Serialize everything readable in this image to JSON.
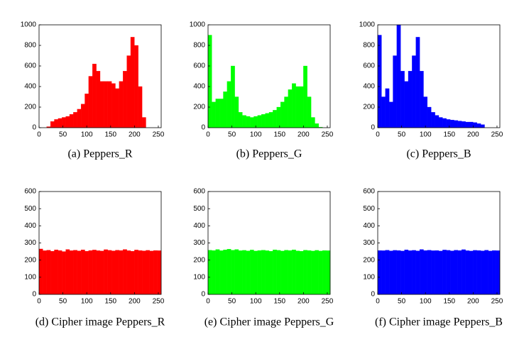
{
  "chart_data": [
    {
      "type": "histogram",
      "title": "(a) Peppers_R",
      "color": "#ff0000",
      "bins": [
        0,
        8,
        16,
        24,
        32,
        40,
        48,
        56,
        64,
        72,
        80,
        88,
        96,
        104,
        112,
        120,
        128,
        136,
        144,
        152,
        160,
        168,
        176,
        184,
        192,
        200,
        208,
        216,
        224,
        232,
        240,
        248,
        256
      ],
      "values": [
        0,
        0,
        10,
        60,
        80,
        90,
        100,
        110,
        130,
        150,
        180,
        230,
        330,
        500,
        620,
        550,
        450,
        450,
        450,
        430,
        380,
        450,
        550,
        700,
        880,
        800,
        400,
        100,
        0,
        0,
        0,
        0
      ],
      "xlim": [
        0,
        256
      ],
      "xticks": [
        0,
        50,
        100,
        150,
        200,
        250
      ],
      "ylim": [
        0,
        1000
      ],
      "yticks": [
        0,
        200,
        400,
        600,
        800,
        1000
      ]
    },
    {
      "type": "histogram",
      "title": "(b) Peppers_G",
      "color": "#00ff00",
      "bins": [
        0,
        8,
        16,
        24,
        32,
        40,
        48,
        56,
        64,
        72,
        80,
        88,
        96,
        104,
        112,
        120,
        128,
        136,
        144,
        152,
        160,
        168,
        176,
        184,
        192,
        200,
        208,
        216,
        224,
        232,
        240,
        248,
        256
      ],
      "values": [
        900,
        250,
        280,
        280,
        350,
        450,
        600,
        300,
        150,
        120,
        110,
        100,
        110,
        120,
        130,
        140,
        150,
        170,
        200,
        250,
        300,
        370,
        430,
        400,
        400,
        600,
        300,
        100,
        40,
        5,
        0,
        0
      ],
      "xlim": [
        0,
        256
      ],
      "xticks": [
        0,
        50,
        100,
        150,
        200,
        250
      ],
      "ylim": [
        0,
        1000
      ],
      "yticks": [
        0,
        200,
        400,
        600,
        800,
        1000
      ]
    },
    {
      "type": "histogram",
      "title": "(c) Peppers_B",
      "color": "#0000ff",
      "bins": [
        0,
        8,
        16,
        24,
        32,
        40,
        48,
        56,
        64,
        72,
        80,
        88,
        96,
        104,
        112,
        120,
        128,
        136,
        144,
        152,
        160,
        168,
        176,
        184,
        192,
        200,
        208,
        216,
        224,
        232,
        240,
        248,
        256
      ],
      "values": [
        900,
        300,
        380,
        250,
        700,
        1000,
        550,
        450,
        550,
        700,
        880,
        550,
        300,
        200,
        150,
        120,
        100,
        90,
        80,
        75,
        70,
        65,
        60,
        55,
        55,
        50,
        40,
        30,
        0,
        0,
        0,
        0
      ],
      "xlim": [
        0,
        256
      ],
      "xticks": [
        0,
        50,
        100,
        150,
        200,
        250
      ],
      "ylim": [
        0,
        1000
      ],
      "yticks": [
        0,
        200,
        400,
        600,
        800,
        1000
      ]
    },
    {
      "type": "histogram",
      "title": "(d) Cipher image Peppers_R",
      "color": "#ff0000",
      "bins": [
        0,
        8,
        16,
        24,
        32,
        40,
        48,
        56,
        64,
        72,
        80,
        88,
        96,
        104,
        112,
        120,
        128,
        136,
        144,
        152,
        160,
        168,
        176,
        184,
        192,
        200,
        208,
        216,
        224,
        232,
        240,
        248,
        256
      ],
      "values": [
        265,
        255,
        258,
        252,
        260,
        256,
        250,
        262,
        255,
        258,
        254,
        260,
        252,
        256,
        259,
        255,
        253,
        261,
        257,
        254,
        258,
        256,
        262,
        255,
        252,
        259,
        256,
        254,
        257,
        253,
        256,
        255
      ],
      "xlim": [
        0,
        256
      ],
      "xticks": [
        0,
        50,
        100,
        150,
        200,
        250
      ],
      "ylim": [
        0,
        600
      ],
      "yticks": [
        0,
        100,
        200,
        300,
        400,
        500,
        600
      ]
    },
    {
      "type": "histogram",
      "title": "(e) Cipher image Peppers_G",
      "color": "#00ff00",
      "bins": [
        0,
        8,
        16,
        24,
        32,
        40,
        48,
        56,
        64,
        72,
        80,
        88,
        96,
        104,
        112,
        120,
        128,
        136,
        144,
        152,
        160,
        168,
        176,
        184,
        192,
        200,
        208,
        216,
        224,
        232,
        240,
        248,
        256
      ],
      "values": [
        258,
        256,
        262,
        255,
        260,
        264,
        258,
        262,
        255,
        257,
        254,
        259,
        253,
        256,
        258,
        255,
        252,
        260,
        257,
        253,
        258,
        256,
        260,
        254,
        252,
        258,
        256,
        253,
        257,
        253,
        256,
        255
      ],
      "xlim": [
        0,
        256
      ],
      "xticks": [
        0,
        50,
        100,
        150,
        200,
        250
      ],
      "ylim": [
        0,
        600
      ],
      "yticks": [
        0,
        100,
        200,
        300,
        400,
        500,
        600
      ]
    },
    {
      "type": "histogram",
      "title": "(f) Cipher image Peppers_B",
      "color": "#0000ff",
      "bins": [
        0,
        8,
        16,
        24,
        32,
        40,
        48,
        56,
        64,
        72,
        80,
        88,
        96,
        104,
        112,
        120,
        128,
        136,
        144,
        152,
        160,
        168,
        176,
        184,
        192,
        200,
        208,
        216,
        224,
        232,
        240,
        248,
        256
      ],
      "values": [
        256,
        255,
        258,
        254,
        257,
        256,
        253,
        260,
        255,
        257,
        254,
        262,
        256,
        258,
        255,
        256,
        253,
        259,
        257,
        254,
        258,
        256,
        261,
        255,
        253,
        257,
        256,
        254,
        258,
        253,
        256,
        255
      ],
      "xlim": [
        0,
        256
      ],
      "xticks": [
        0,
        50,
        100,
        150,
        200,
        250
      ],
      "ylim": [
        0,
        600
      ],
      "yticks": [
        0,
        100,
        200,
        300,
        400,
        500,
        600
      ]
    }
  ]
}
